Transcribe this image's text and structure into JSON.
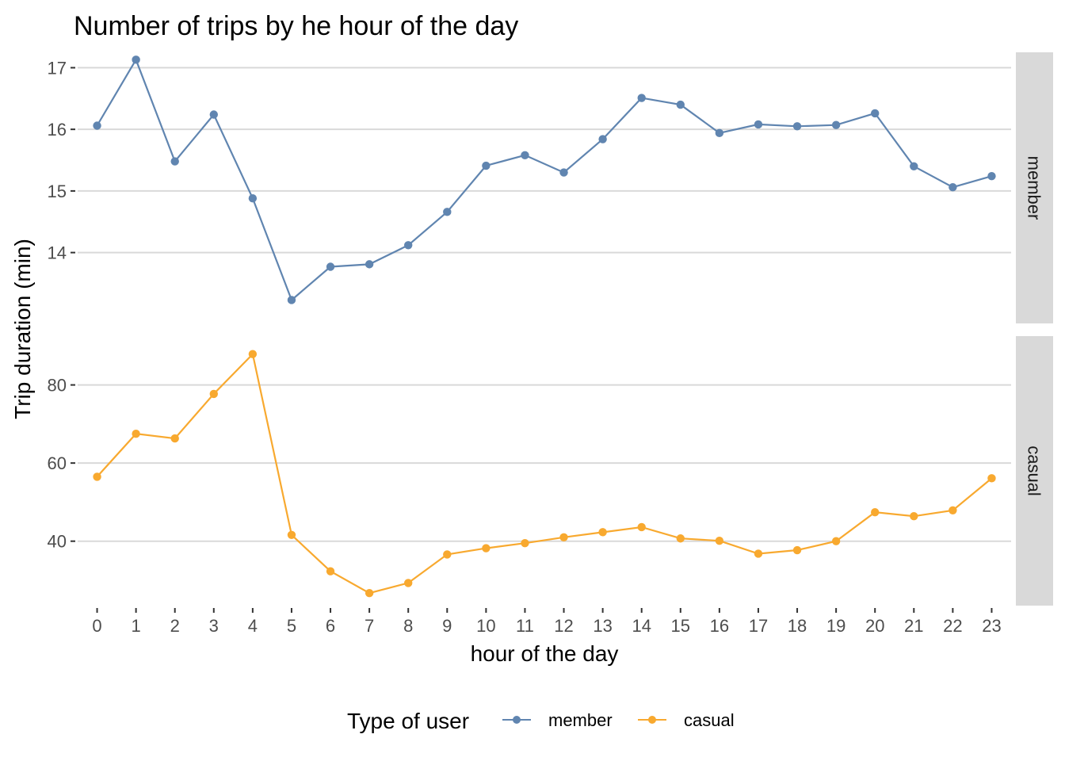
{
  "chart_data": {
    "type": "line",
    "title": "Number of trips by he hour of the day",
    "xlabel": "hour of the day",
    "ylabel": "Trip duration (min)",
    "x": [
      0,
      1,
      2,
      3,
      4,
      5,
      6,
      7,
      8,
      9,
      10,
      11,
      12,
      13,
      14,
      15,
      16,
      17,
      18,
      19,
      20,
      21,
      22,
      23
    ],
    "x_ticks": [
      "0",
      "1",
      "2",
      "3",
      "4",
      "5",
      "6",
      "7",
      "8",
      "9",
      "10",
      "11",
      "12",
      "13",
      "14",
      "15",
      "16",
      "17",
      "18",
      "19",
      "20",
      "21",
      "22",
      "23"
    ],
    "legend": {
      "title": "Type of user",
      "position": "bottom"
    },
    "grid": true,
    "facets": "rows by user type, independent y scales",
    "series": [
      {
        "name": "member",
        "color": "#6085b0",
        "strip_label": "member",
        "ylim": [
          12.85,
          17.25
        ],
        "y_ticks": [
          14,
          15,
          16,
          17
        ],
        "y_tick_labels": [
          "14",
          "15",
          "16",
          "17"
        ],
        "values": [
          16.06,
          17.13,
          15.48,
          16.24,
          14.88,
          13.23,
          13.77,
          13.81,
          14.12,
          14.66,
          15.41,
          15.58,
          15.3,
          15.84,
          16.51,
          16.4,
          15.94,
          16.08,
          16.05,
          16.07,
          16.26,
          15.4,
          15.06,
          15.24
        ]
      },
      {
        "name": "casual",
        "color": "#f8a92f",
        "strip_label": "casual",
        "ylim": [
          23.5,
          92.5
        ],
        "y_ticks": [
          40,
          60,
          80
        ],
        "y_tick_labels": [
          "40",
          "60",
          "80"
        ],
        "values": [
          56.5,
          67.5,
          66.3,
          77.7,
          87.9,
          41.6,
          32.3,
          26.7,
          29.3,
          36.6,
          38.2,
          39.5,
          41.0,
          42.3,
          43.6,
          40.7,
          40.1,
          36.8,
          37.7,
          40.0,
          47.4,
          46.4,
          47.9,
          56.1
        ]
      }
    ]
  }
}
